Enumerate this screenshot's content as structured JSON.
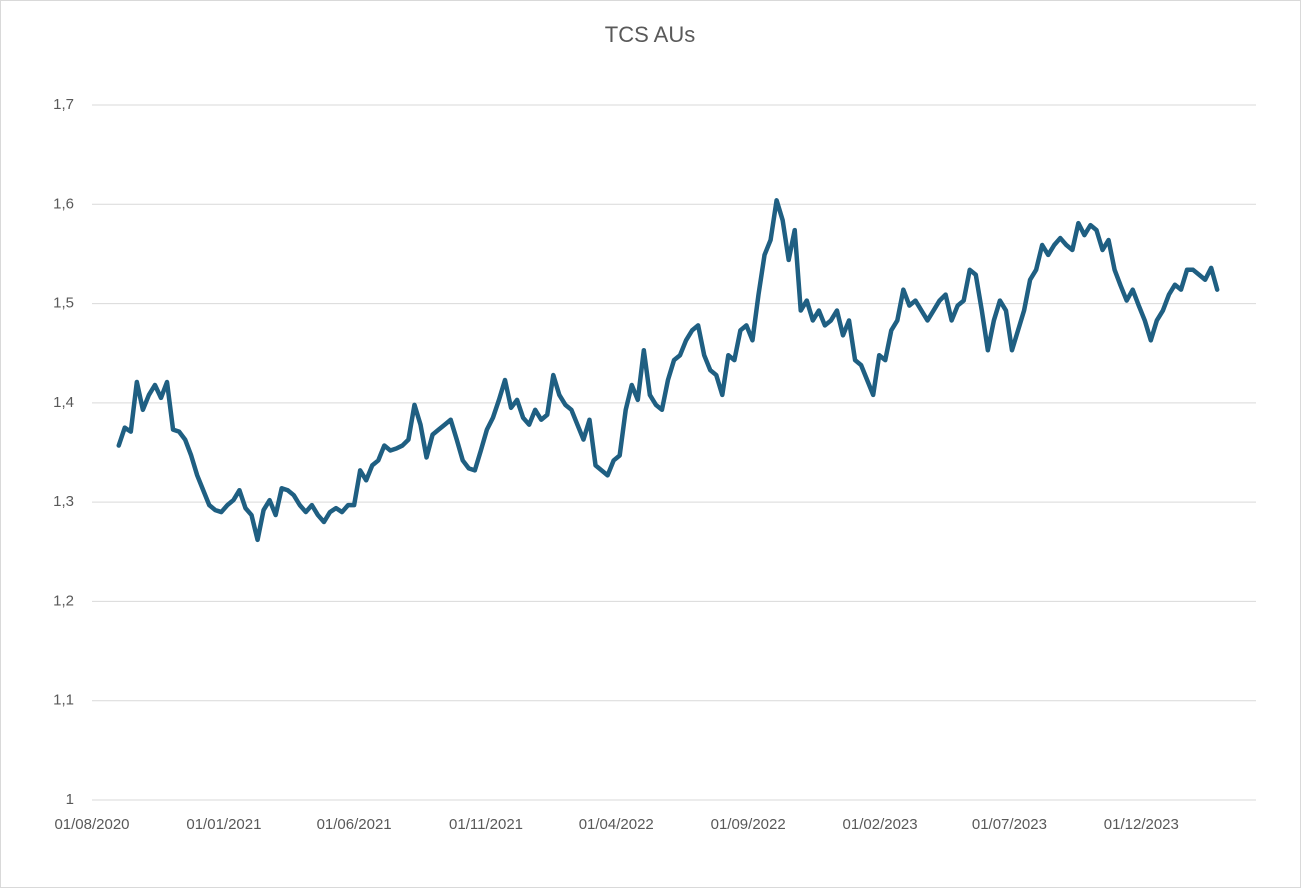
{
  "chart_data": {
    "type": "line",
    "title": "TCS AUs",
    "x": [
      "01/09/2020",
      "08/09/2020",
      "15/09/2020",
      "22/09/2020",
      "29/09/2020",
      "06/10/2020",
      "13/10/2020",
      "20/10/2020",
      "27/10/2020",
      "03/11/2020",
      "10/11/2020",
      "17/11/2020",
      "24/11/2020",
      "01/12/2020",
      "08/12/2020",
      "15/12/2020",
      "22/12/2020",
      "29/12/2020",
      "05/01/2021",
      "12/01/2021",
      "19/01/2021",
      "26/01/2021",
      "02/02/2021",
      "09/02/2021",
      "16/02/2021",
      "23/02/2021",
      "02/03/2021",
      "09/03/2021",
      "16/03/2021",
      "23/03/2021",
      "30/03/2021",
      "06/04/2021",
      "13/04/2021",
      "20/04/2021",
      "27/04/2021",
      "04/05/2021",
      "11/05/2021",
      "18/05/2021",
      "25/05/2021",
      "01/06/2021",
      "08/06/2021",
      "15/06/2021",
      "22/06/2021",
      "29/06/2021",
      "06/07/2021",
      "13/07/2021",
      "20/07/2021",
      "27/07/2021",
      "03/08/2021",
      "10/08/2021",
      "17/08/2021",
      "24/08/2021",
      "31/08/2021",
      "07/09/2021",
      "14/09/2021",
      "21/09/2021",
      "28/09/2021",
      "05/10/2021",
      "12/10/2021",
      "19/10/2021",
      "26/10/2021",
      "02/11/2021",
      "09/11/2021",
      "16/11/2021",
      "23/11/2021",
      "30/11/2021",
      "07/12/2021",
      "14/12/2021",
      "21/12/2021",
      "28/12/2021",
      "04/01/2022",
      "11/01/2022",
      "18/01/2022",
      "25/01/2022",
      "01/02/2022",
      "08/02/2022",
      "15/02/2022",
      "22/02/2022",
      "01/03/2022",
      "08/03/2022",
      "15/03/2022",
      "22/03/2022",
      "29/03/2022",
      "05/04/2022",
      "12/04/2022",
      "19/04/2022",
      "26/04/2022",
      "03/05/2022",
      "10/05/2022",
      "17/05/2022",
      "24/05/2022",
      "31/05/2022",
      "07/06/2022",
      "14/06/2022",
      "21/06/2022",
      "28/06/2022",
      "05/07/2022",
      "12/07/2022",
      "19/07/2022",
      "26/07/2022",
      "02/08/2022",
      "09/08/2022",
      "16/08/2022",
      "23/08/2022",
      "30/08/2022",
      "06/09/2022",
      "13/09/2022",
      "20/09/2022",
      "27/09/2022",
      "04/10/2022",
      "11/10/2022",
      "18/10/2022",
      "25/10/2022",
      "01/11/2022",
      "08/11/2022",
      "15/11/2022",
      "22/11/2022",
      "29/11/2022",
      "06/12/2022",
      "13/12/2022",
      "20/12/2022",
      "27/12/2022",
      "03/01/2023",
      "10/01/2023",
      "17/01/2023",
      "24/01/2023",
      "31/01/2023",
      "07/02/2023",
      "14/02/2023",
      "21/02/2023",
      "28/02/2023",
      "07/03/2023",
      "14/03/2023",
      "21/03/2023",
      "28/03/2023",
      "04/04/2023",
      "11/04/2023",
      "18/04/2023",
      "25/04/2023",
      "02/05/2023",
      "09/05/2023",
      "16/05/2023",
      "23/05/2023",
      "30/05/2023",
      "06/06/2023",
      "13/06/2023",
      "20/06/2023",
      "27/06/2023",
      "04/07/2023",
      "11/07/2023",
      "18/07/2023",
      "25/07/2023",
      "01/08/2023",
      "08/08/2023",
      "15/08/2023",
      "22/08/2023",
      "29/08/2023",
      "05/09/2023",
      "12/09/2023",
      "19/09/2023",
      "26/09/2023",
      "03/10/2023",
      "10/10/2023",
      "17/10/2023",
      "24/10/2023",
      "31/10/2023",
      "07/11/2023",
      "14/11/2023",
      "21/11/2023",
      "28/11/2023",
      "05/12/2023",
      "12/12/2023",
      "19/12/2023",
      "26/12/2023",
      "02/01/2024",
      "09/01/2024",
      "16/01/2024",
      "23/01/2024",
      "30/01/2024",
      "06/02/2024",
      "13/02/2024",
      "20/02/2024",
      "27/02/2024"
    ],
    "values": [
      1.357,
      1.375,
      1.371,
      1.421,
      1.393,
      1.408,
      1.418,
      1.405,
      1.421,
      1.373,
      1.371,
      1.363,
      1.347,
      1.327,
      1.312,
      1.297,
      1.292,
      1.29,
      1.297,
      1.302,
      1.312,
      1.294,
      1.287,
      1.262,
      1.292,
      1.302,
      1.287,
      1.314,
      1.312,
      1.307,
      1.297,
      1.29,
      1.297,
      1.287,
      1.28,
      1.29,
      1.294,
      1.29,
      1.297,
      1.297,
      1.332,
      1.322,
      1.337,
      1.342,
      1.357,
      1.352,
      1.354,
      1.357,
      1.363,
      1.398,
      1.378,
      1.345,
      1.368,
      1.373,
      1.378,
      1.383,
      1.363,
      1.342,
      1.334,
      1.332,
      1.352,
      1.373,
      1.385,
      1.403,
      1.423,
      1.395,
      1.403,
      1.385,
      1.378,
      1.393,
      1.383,
      1.388,
      1.428,
      1.408,
      1.398,
      1.393,
      1.378,
      1.363,
      1.383,
      1.337,
      1.332,
      1.327,
      1.342,
      1.347,
      1.393,
      1.418,
      1.403,
      1.453,
      1.408,
      1.398,
      1.393,
      1.423,
      1.443,
      1.448,
      1.463,
      1.473,
      1.478,
      1.448,
      1.433,
      1.428,
      1.408,
      1.448,
      1.443,
      1.473,
      1.478,
      1.463,
      1.509,
      1.549,
      1.564,
      1.604,
      1.584,
      1.544,
      1.574,
      1.493,
      1.503,
      1.483,
      1.493,
      1.478,
      1.483,
      1.493,
      1.468,
      1.483,
      1.443,
      1.438,
      1.423,
      1.408,
      1.448,
      1.443,
      1.473,
      1.483,
      1.514,
      1.498,
      1.503,
      1.493,
      1.483,
      1.493,
      1.503,
      1.509,
      1.483,
      1.498,
      1.503,
      1.534,
      1.529,
      1.493,
      1.453,
      1.483,
      1.503,
      1.493,
      1.453,
      1.473,
      1.493,
      1.524,
      1.534,
      1.559,
      1.549,
      1.559,
      1.566,
      1.559,
      1.554,
      1.581,
      1.569,
      1.579,
      1.574,
      1.554,
      1.564,
      1.534,
      1.518,
      1.503,
      1.514,
      1.498,
      1.483,
      1.463,
      1.483,
      1.493,
      1.509,
      1.519,
      1.514,
      1.534,
      1.534,
      1.529,
      1.524,
      1.536,
      1.514
    ],
    "color": "#1f5f82",
    "xlim": [
      "01/08/2020",
      "12/04/2024"
    ],
    "xticks": [
      "01/08/2020",
      "01/01/2021",
      "01/06/2021",
      "01/11/2021",
      "01/04/2022",
      "01/09/2022",
      "01/02/2023",
      "01/07/2023",
      "01/12/2023"
    ],
    "ylim": [
      1,
      1.7
    ],
    "yticks": [
      1,
      {
        "value": 1.1,
        "label": "1,1"
      },
      {
        "value": 1.2,
        "label": "1,2"
      },
      {
        "value": 1.3,
        "label": "1,3"
      },
      {
        "value": 1.4,
        "label": "1,4"
      },
      {
        "value": 1.5,
        "label": "1,5"
      },
      {
        "value": 1.6,
        "label": "1,6"
      },
      {
        "value": 1.7,
        "label": "1,7"
      }
    ],
    "grid": true
  }
}
